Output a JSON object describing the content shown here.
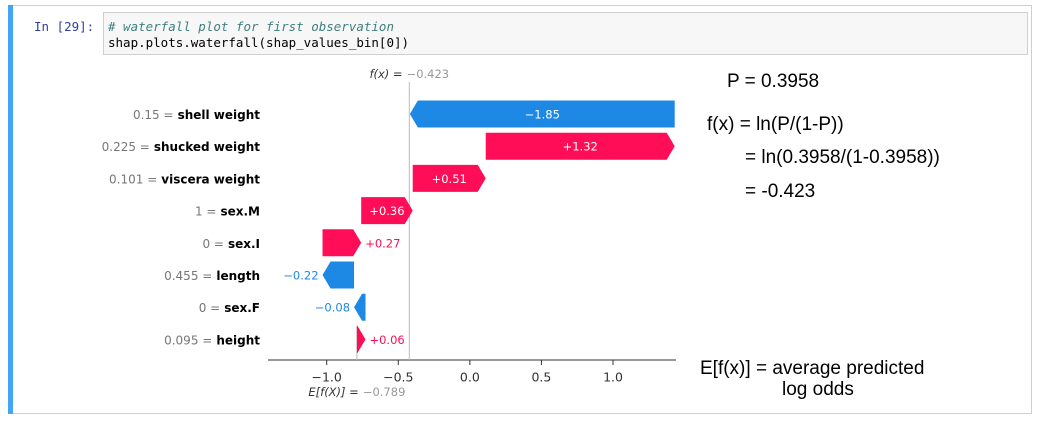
{
  "cell": {
    "prompt": "In [29]:",
    "code": [
      "# waterfall plot for first observation",
      "shap.plots.waterfall(shap_values_bin[0])"
    ]
  },
  "chart_data": {
    "type": "waterfall",
    "categories": [
      "shell weight",
      "shucked weight",
      "viscera weight",
      "sex.M",
      "sex.I",
      "length",
      "sex.F",
      "height"
    ],
    "feature_values": [
      "0.15 =",
      "0.225 =",
      "0.101 =",
      "1 =",
      "0 =",
      "0.455 =",
      "0 =",
      "0.095 ="
    ],
    "values": [
      -1.85,
      1.32,
      0.51,
      0.36,
      0.27,
      -0.22,
      -0.08,
      0.06
    ],
    "value_labels": [
      "−1.85",
      "+1.32",
      "+0.51",
      "+0.36",
      "+0.27",
      "−0.22",
      "−0.08",
      "+0.06"
    ],
    "positive_color": "#ff0d57",
    "negative_color": "#1e88e5",
    "base_text": "E[f(X)] =",
    "base_value": {
      "value": -0.789,
      "label": "−0.789"
    },
    "output_text": "f(x) =",
    "output_value": {
      "value": -0.423,
      "label": "−0.423"
    },
    "xlim": [
      -1.41,
      1.44
    ],
    "xticks": [
      {
        "value": -1.0,
        "label": "−1.0"
      },
      {
        "value": -0.5,
        "label": "−0.5"
      },
      {
        "value": 0.0,
        "label": "0.0"
      },
      {
        "value": 0.5,
        "label": "0.5"
      },
      {
        "value": 1.0,
        "label": "1.0"
      }
    ]
  },
  "annotations": [
    "P = 0.3958",
    "f(x) = ln(P/(1-P))",
    "= ln(0.3958/(1-0.3958))",
    "= -0.423",
    "E[f(x)] = average predicted",
    "log odds"
  ]
}
